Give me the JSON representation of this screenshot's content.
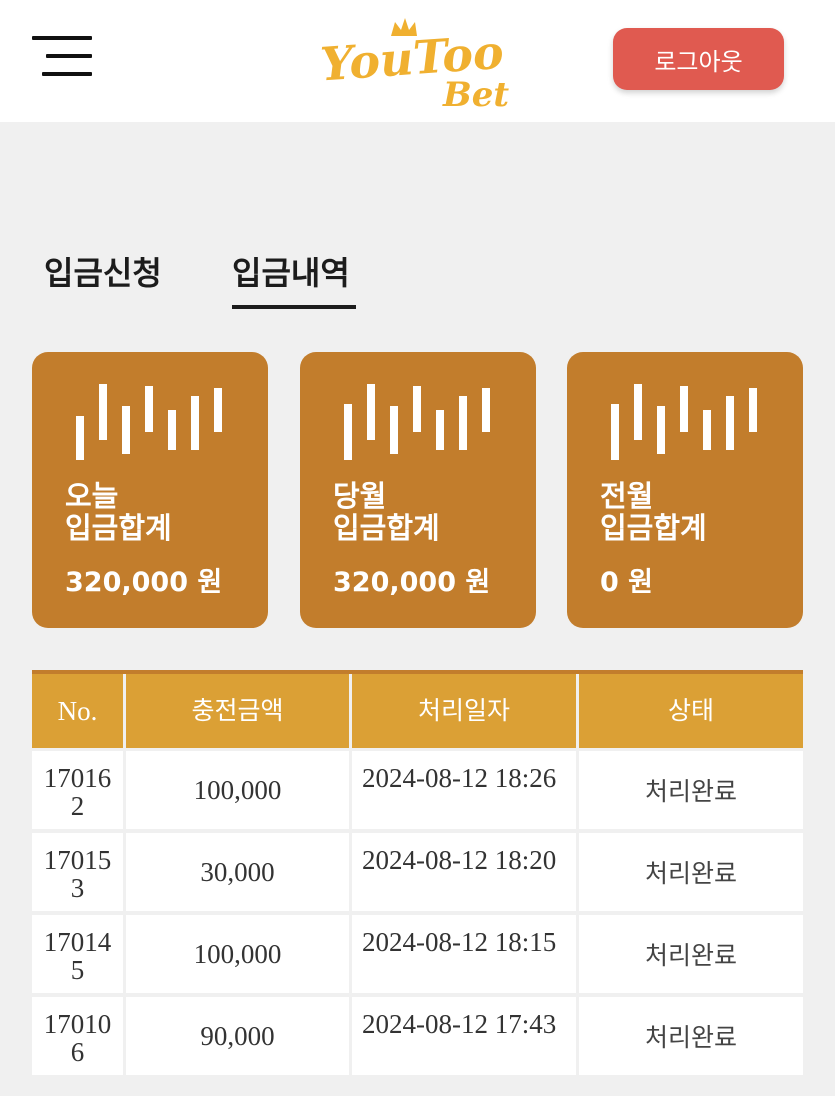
{
  "header": {
    "logo": {
      "line1": "YouToo",
      "line2": "Bet"
    },
    "logout_label": "로그아웃"
  },
  "tabs": [
    {
      "label": "입금신청",
      "active": false
    },
    {
      "label": "입금내역",
      "active": true
    }
  ],
  "summary_cards": [
    {
      "line1": "오늘",
      "line2": "입금합계",
      "amount": "320,000 원"
    },
    {
      "line1": "당월",
      "line2": "입금합계",
      "amount": "320,000 원"
    },
    {
      "line1": "전월",
      "line2": "입금합계",
      "amount": "0 원"
    }
  ],
  "table": {
    "headers": [
      "No.",
      "충전금액",
      "처리일자",
      "상태"
    ],
    "rows": [
      {
        "no": "170162",
        "amount": "100,000",
        "date": "2024-08-12 18:26",
        "status": "처리완료"
      },
      {
        "no": "170153",
        "amount": "30,000",
        "date": "2024-08-12 18:20",
        "status": "처리완료"
      },
      {
        "no": "170145",
        "amount": "100,000",
        "date": "2024-08-12 18:15",
        "status": "처리완료"
      },
      {
        "no": "170106",
        "amount": "90,000",
        "date": "2024-08-12 17:43",
        "status": "처리완료"
      }
    ]
  },
  "colors": {
    "accent": "#c27d2c",
    "table_header": "#dba035",
    "logout": "#e05a50",
    "logo": "#f0b030"
  },
  "icons": {
    "menu": "hamburger-menu-icon",
    "card": "candlestick-chart-icon"
  }
}
